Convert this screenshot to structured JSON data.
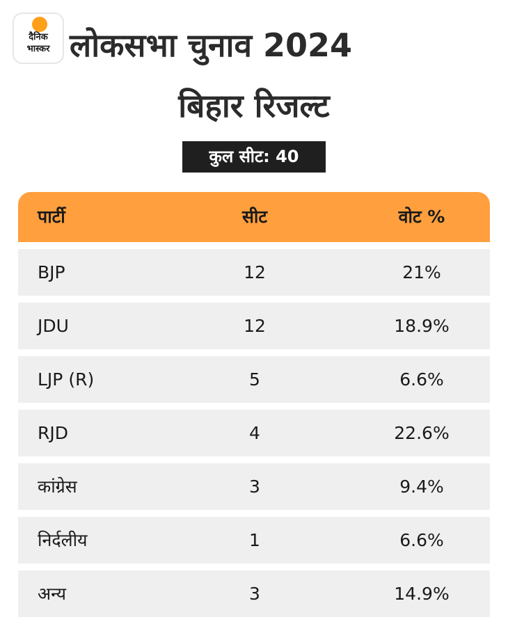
{
  "brand": {
    "line1": "दैनिक",
    "line2": "भास्कर"
  },
  "header": {
    "title": "लोकसभा चुनाव 2024",
    "subtitle": "बिहार रिजल्ट",
    "total_seats": "कुल सीट: 40"
  },
  "colors": {
    "header_bg": "#ff9f3d",
    "row_bg": "#efefef",
    "badge_bg": "#1f1f1f",
    "logo_sun": "#ff9f1a"
  },
  "table": {
    "columns": [
      "पार्टी",
      "सीट",
      "वोट %"
    ],
    "rows": [
      {
        "party": "BJP",
        "seats": "12",
        "vote": "21%"
      },
      {
        "party": "JDU",
        "seats": "12",
        "vote": "18.9%"
      },
      {
        "party": "LJP (R)",
        "seats": "5",
        "vote": "6.6%"
      },
      {
        "party": "RJD",
        "seats": "4",
        "vote": "22.6%"
      },
      {
        "party": "कांग्रेस",
        "seats": "3",
        "vote": "9.4%"
      },
      {
        "party": "निर्दलीय",
        "seats": "1",
        "vote": "6.6%"
      },
      {
        "party": "अन्य",
        "seats": "3",
        "vote": "14.9%"
      }
    ]
  }
}
